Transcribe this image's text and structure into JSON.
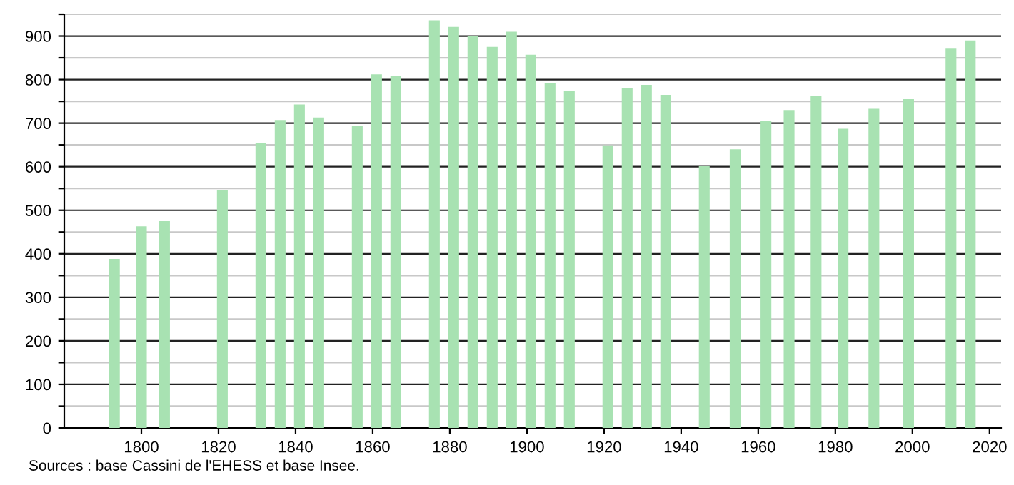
{
  "chart_data": {
    "type": "bar",
    "x": [
      1793,
      1800,
      1806,
      1821,
      1831,
      1836,
      1841,
      1846,
      1856,
      1861,
      1866,
      1876,
      1881,
      1886,
      1891,
      1896,
      1901,
      1906,
      1911,
      1921,
      1926,
      1931,
      1936,
      1946,
      1954,
      1962,
      1968,
      1975,
      1982,
      1990,
      1999,
      2010,
      2015
    ],
    "values": [
      388,
      463,
      475,
      546,
      654,
      707,
      743,
      713,
      694,
      812,
      809,
      936,
      921,
      900,
      875,
      910,
      857,
      791,
      773,
      649,
      781,
      788,
      765,
      601,
      640,
      706,
      730,
      763,
      687,
      733,
      755,
      871,
      890
    ],
    "color": "#a8e2b2",
    "xlim": [
      1780,
      2023
    ],
    "xticks": [
      1800,
      1820,
      1840,
      1860,
      1880,
      1900,
      1920,
      1940,
      1960,
      1980,
      2000,
      2020
    ],
    "ylim": [
      0,
      950
    ],
    "yticks": [
      0,
      {
        "value": 50,
        "label": null
      },
      100,
      {
        "value": 150,
        "label": null
      },
      200,
      {
        "value": 250,
        "label": null
      },
      300,
      {
        "value": 350,
        "label": null
      },
      400,
      {
        "value": 450,
        "label": null
      },
      500,
      {
        "value": 550,
        "label": null
      },
      600,
      {
        "value": 650,
        "label": null
      },
      700,
      {
        "value": 750,
        "label": null
      },
      800,
      {
        "value": 850,
        "label": null
      },
      900,
      {
        "value": 950,
        "label": null
      }
    ],
    "grid": "y",
    "annotations": [
      "Sources : base Cassini de l'EHESS et base Insee."
    ]
  }
}
